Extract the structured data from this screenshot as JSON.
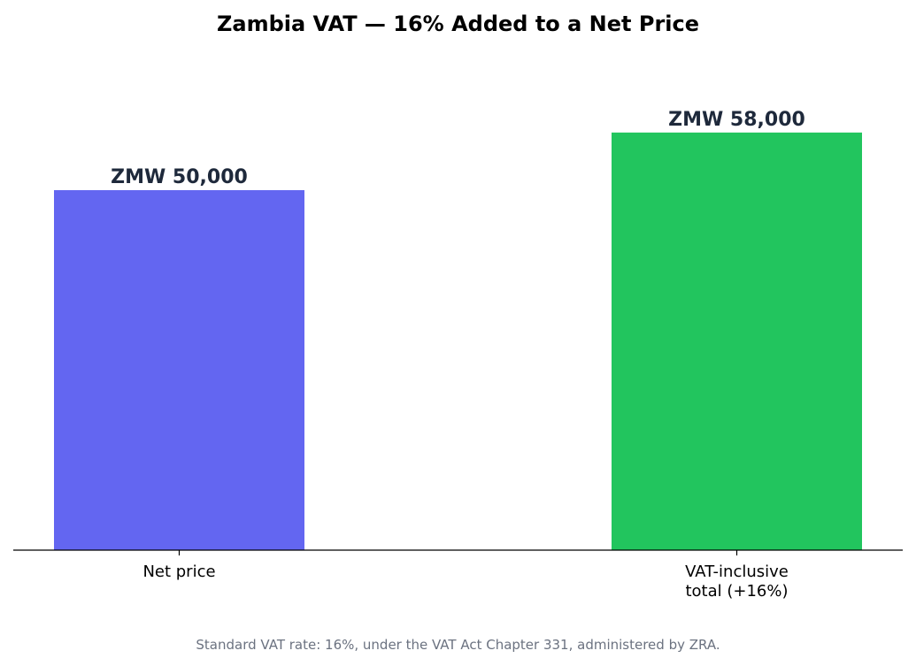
{
  "chart_data": {
    "type": "bar",
    "title": "Zambia VAT — 16% Added to a Net Price",
    "categories": [
      [
        "Net price"
      ],
      [
        "VAT-inclusive",
        "total (+16%)"
      ]
    ],
    "values": [
      50000,
      58000
    ],
    "value_labels": [
      "ZMW 50,000",
      "ZMW 58,000"
    ],
    "colors": [
      "#6366f1",
      "#22c55e"
    ],
    "currency": "ZMW",
    "vat_rate_percent": 16,
    "ylim": [
      0,
      64000
    ],
    "xlabel": "",
    "ylabel": "",
    "grid": false,
    "y_axis_visible": false,
    "footnote": "Standard VAT rate: 16%, under the VAT Act Chapter 331, administered by ZRA."
  }
}
